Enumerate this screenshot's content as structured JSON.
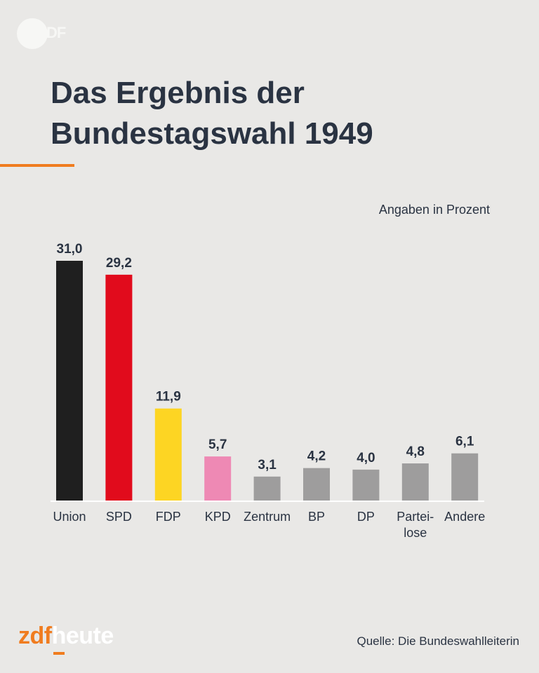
{
  "brand": {
    "top_logo_text": "DF",
    "footer_zdf": "zdf",
    "footer_heute": "heute"
  },
  "colors": {
    "accent": "#f07c1f",
    "text": "#2a3342",
    "background": "#e9e8e6"
  },
  "units_label": "Angaben in Prozent",
  "source": "Quelle: Die Bundeswahlleiterin",
  "chart_data": {
    "type": "bar",
    "title": "Das Ergebnis der Bundestagswahl 1949",
    "title_lines": [
      "Das Ergebnis der",
      "Bundestagswahl 1949"
    ],
    "xlabel": "",
    "ylabel": "Angaben in Prozent",
    "ylim": [
      0,
      31
    ],
    "categories": [
      "Union",
      "SPD",
      "FDP",
      "KPD",
      "Zentrum",
      "BP",
      "DP",
      "Partei-\nlose",
      "Andere"
    ],
    "values": [
      31.0,
      29.2,
      11.9,
      5.7,
      3.1,
      4.2,
      4.0,
      4.8,
      6.1
    ],
    "value_labels": [
      "31,0",
      "29,2",
      "11,9",
      "5,7",
      "3,1",
      "4,2",
      "4,0",
      "4,8",
      "6,1"
    ],
    "bar_colors": [
      "#1f1f1f",
      "#e10b1c",
      "#fdd523",
      "#ee89b4",
      "#9e9d9d",
      "#9e9d9d",
      "#9e9d9d",
      "#9e9d9d",
      "#9e9d9d"
    ]
  }
}
